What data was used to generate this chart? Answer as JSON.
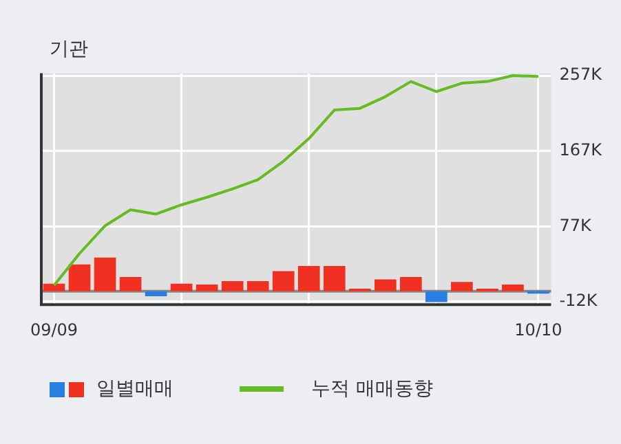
{
  "chart_data": {
    "type": "bar",
    "title": "기관",
    "categories": [
      "09/09",
      null,
      null,
      null,
      null,
      null,
      null,
      null,
      null,
      null,
      null,
      null,
      null,
      null,
      null,
      null,
      null,
      null,
      null,
      "10/10"
    ],
    "series": [
      {
        "name": "일별매매",
        "colors": [
          "#f03020",
          "#f03020",
          "#f03020",
          "#f03020",
          "#2a7de1",
          "#f03020",
          "#f03020",
          "#f03020",
          "#f03020",
          "#f03020",
          "#f03020",
          "#f03020",
          "#f03020",
          "#f03020",
          "#f03020",
          "#2a7de1",
          "#f03020",
          "#f03020",
          "#f03020",
          "#2a7de1"
        ],
        "values": [
          9,
          32,
          40,
          17,
          -6,
          9,
          8,
          12,
          12,
          24,
          30,
          30,
          3,
          14,
          17,
          -13,
          11,
          3,
          8,
          -3
        ]
      },
      {
        "name": "누적 매매동향",
        "type": "line",
        "color": "#66bb22",
        "values": [
          7,
          45,
          78,
          97,
          92,
          103,
          112,
          122,
          133,
          155,
          182,
          216,
          218,
          232,
          250,
          238,
          248,
          250,
          257,
          256
        ]
      }
    ],
    "ylim": [
      -16,
      260
    ],
    "yticks": [
      {
        "value": -12,
        "label": "-12K"
      },
      {
        "value": 77,
        "label": "77K"
      },
      {
        "value": 167,
        "label": "167K"
      },
      {
        "value": 257,
        "label": "257K"
      }
    ],
    "grid": true,
    "legend": "bottom",
    "marker": "none",
    "line_style": "solid"
  }
}
